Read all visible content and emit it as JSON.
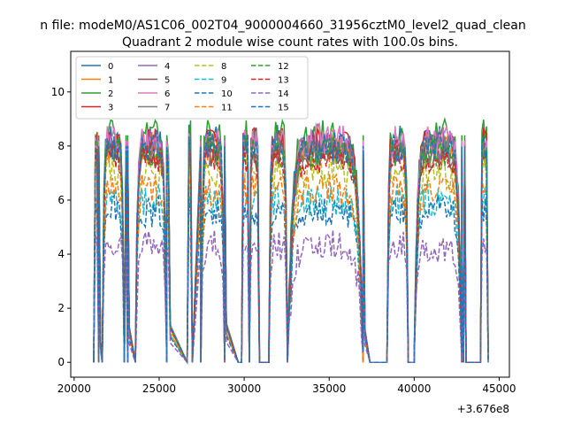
{
  "figure": {
    "suptitle": "n file: modeM0/AS1C06_002T04_9000004660_31956cztM0_level2_quad_clean",
    "title": "Quadrant 2 module wise count rates with 100.0s bins.",
    "offset_label": "+3.676e8"
  },
  "chart_data": {
    "type": "line",
    "title": "Quadrant 2 module wise count rates with 100.0s bins.",
    "xlabel": "",
    "ylabel": "",
    "x_offset": 367600000,
    "xlim": [
      19800,
      45600
    ],
    "ylim": [
      -0.55,
      11.5
    ],
    "xticks": [
      20000,
      25000,
      30000,
      35000,
      40000,
      45000
    ],
    "yticks": [
      0,
      2,
      4,
      6,
      8,
      10
    ],
    "legend_position": "top-left",
    "legend_columns": 4,
    "segments": [
      [
        21150,
        21450
      ],
      [
        21450,
        21650
      ],
      [
        21650,
        22950
      ],
      [
        22950,
        23150
      ],
      [
        23150,
        23600
      ],
      [
        23600,
        25450
      ],
      [
        25450,
        26650
      ],
      [
        26650,
        26950
      ],
      [
        26950,
        27450
      ],
      [
        27450,
        28850
      ],
      [
        28850,
        29650
      ],
      [
        29650,
        29850
      ],
      [
        29850,
        30300
      ],
      [
        30300,
        30900
      ],
      [
        30900,
        31450
      ],
      [
        31450,
        32550
      ],
      [
        32550,
        37000
      ],
      [
        37000,
        37400
      ],
      [
        37400,
        38400
      ],
      [
        38400,
        39650
      ],
      [
        39650,
        40000
      ],
      [
        40000,
        42800
      ],
      [
        42800,
        42900
      ],
      [
        42900,
        43050
      ],
      [
        43050,
        43900
      ],
      [
        43900,
        44350
      ]
    ],
    "segment_shapes": [
      "bump",
      "drop",
      "bump",
      "spike",
      "drop",
      "bump",
      "drop",
      "bump",
      "rise",
      "bump",
      "drop",
      "zero",
      "bump",
      "bump",
      "zero",
      "bump",
      "bump",
      "drop",
      "zero",
      "bump",
      "zero",
      "bump",
      "drop",
      "spike",
      "zero",
      "bump"
    ],
    "series": [
      {
        "name": "0",
        "color": "#1f77b4",
        "style": "solid",
        "level": 8.2
      },
      {
        "name": "1",
        "color": "#ff7f0e",
        "style": "solid",
        "level": 7.9
      },
      {
        "name": "2",
        "color": "#2ca02c",
        "style": "solid",
        "level": 8.4
      },
      {
        "name": "3",
        "color": "#d62728",
        "style": "solid",
        "level": 8.1
      },
      {
        "name": "4",
        "color": "#9467bd",
        "style": "solid",
        "level": 8.0
      },
      {
        "name": "5",
        "color": "#8c564b",
        "style": "solid",
        "level": 7.7
      },
      {
        "name": "6",
        "color": "#e377c2",
        "style": "solid",
        "level": 8.2
      },
      {
        "name": "7",
        "color": "#7f7f7f",
        "style": "solid",
        "level": 7.8
      },
      {
        "name": "8",
        "color": "#bcbd22",
        "style": "dashed",
        "level": 7.0
      },
      {
        "name": "9",
        "color": "#17becf",
        "style": "dashed",
        "level": 6.0
      },
      {
        "name": "10",
        "color": "#1f77b4",
        "style": "dashed",
        "level": 5.6
      },
      {
        "name": "11",
        "color": "#ff7f0e",
        "style": "dashed",
        "level": 6.4
      },
      {
        "name": "12",
        "color": "#2ca02c",
        "style": "dashed",
        "level": 7.8
      },
      {
        "name": "13",
        "color": "#d62728",
        "style": "dashed",
        "level": 7.6
      },
      {
        "name": "14",
        "color": "#9467bd",
        "style": "dashed",
        "level": 4.3
      },
      {
        "name": "15",
        "color": "#1f77b4",
        "style": "dashed",
        "level": 8.0
      }
    ]
  }
}
